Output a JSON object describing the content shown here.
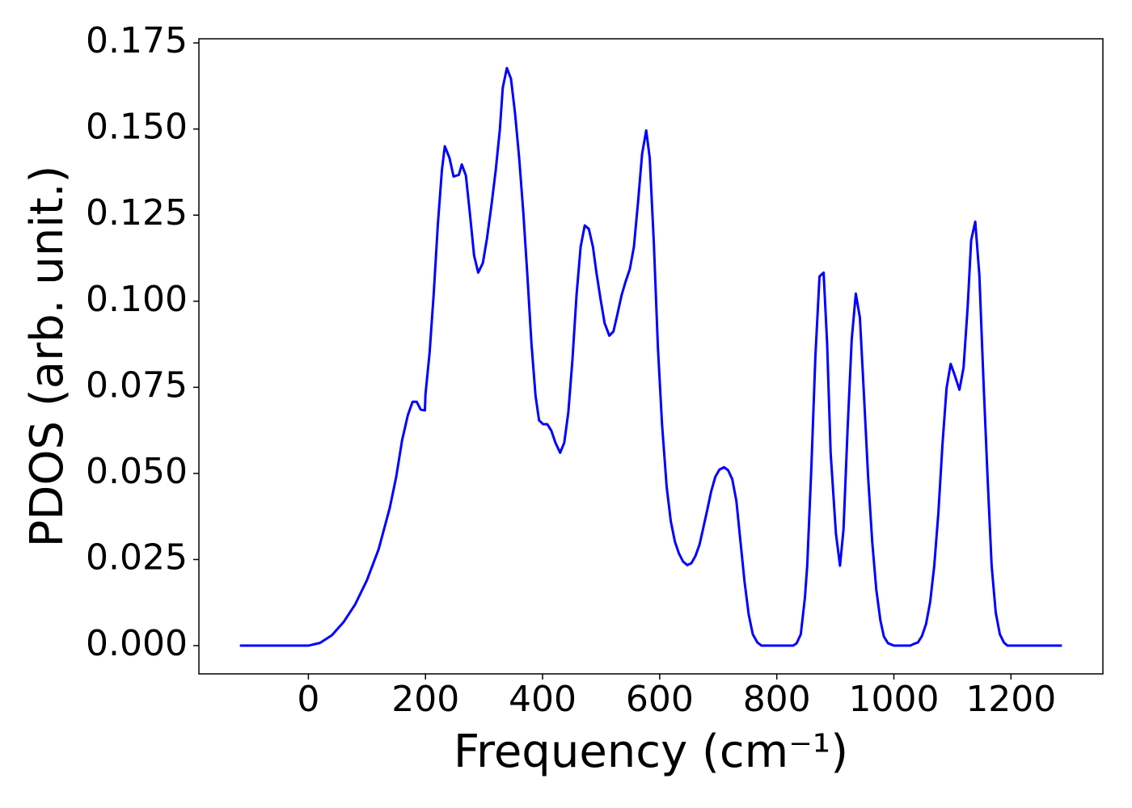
{
  "chart_data": {
    "type": "line",
    "xlabel": "Frequency (cm⁻¹)",
    "ylabel": "PDOS (arb. unit.)",
    "color": "#0000ff",
    "x": [
      -117,
      0,
      20,
      40,
      60,
      80,
      100,
      120,
      139,
      150,
      160,
      170,
      178,
      185,
      192,
      199,
      200,
      207,
      214,
      221,
      228,
      233,
      241,
      248,
      257,
      262,
      269,
      276,
      283,
      290,
      298,
      305,
      313,
      320,
      327,
      332,
      339,
      346,
      353,
      360,
      367,
      374,
      381,
      388,
      394,
      401,
      408,
      415,
      422,
      430,
      437,
      444,
      451,
      458,
      465,
      472,
      479,
      486,
      492,
      499,
      506,
      514,
      521,
      528,
      535,
      542,
      549,
      556,
      563,
      570,
      577,
      583,
      590,
      597,
      604,
      612,
      619,
      626,
      633,
      640,
      647,
      654,
      661,
      668,
      674,
      681,
      688,
      695,
      702,
      710,
      717,
      724,
      731,
      738,
      745,
      752,
      759,
      767,
      774,
      828,
      834,
      841,
      848,
      852,
      859,
      866,
      873,
      880,
      886,
      892,
      901,
      908,
      914,
      921,
      928,
      935,
      942,
      949,
      956,
      963,
      970,
      977,
      983,
      990,
      1000,
      1028,
      1034,
      1041,
      1048,
      1055,
      1062,
      1069,
      1076,
      1083,
      1090,
      1097,
      1103,
      1112,
      1119,
      1126,
      1132,
      1139,
      1146,
      1153,
      1160,
      1167,
      1174,
      1181,
      1188,
      1194,
      1287
    ],
    "values": [
      0,
      0,
      0.0008,
      0.003,
      0.0068,
      0.012,
      0.019,
      0.028,
      0.04,
      0.049,
      0.0596,
      0.067,
      0.0708,
      0.0708,
      0.0685,
      0.0683,
      0.073,
      0.085,
      0.102,
      0.122,
      0.138,
      0.145,
      0.1416,
      0.1362,
      0.1367,
      0.1397,
      0.1365,
      0.1252,
      0.1133,
      0.1083,
      0.1111,
      0.1182,
      0.1283,
      0.1381,
      0.1498,
      0.162,
      0.1677,
      0.1646,
      0.1545,
      0.1416,
      0.126,
      0.1076,
      0.0877,
      0.0725,
      0.0654,
      0.0643,
      0.0643,
      0.0624,
      0.0589,
      0.056,
      0.0589,
      0.0678,
      0.083,
      0.1018,
      0.1158,
      0.122,
      0.121,
      0.1158,
      0.1083,
      0.1006,
      0.0936,
      0.09,
      0.0912,
      0.0964,
      0.1018,
      0.1058,
      0.1093,
      0.1158,
      0.1287,
      0.1428,
      0.1496,
      0.1416,
      0.117,
      0.0865,
      0.0643,
      0.046,
      0.0361,
      0.0302,
      0.0267,
      0.0244,
      0.0234,
      0.0239,
      0.026,
      0.0293,
      0.0338,
      0.0392,
      0.0448,
      0.049,
      0.0511,
      0.0518,
      0.0509,
      0.0483,
      0.042,
      0.0302,
      0.0185,
      0.0091,
      0.0033,
      0.0009,
      0,
      0,
      0.0007,
      0.0033,
      0.0138,
      0.0232,
      0.0514,
      0.0842,
      0.1072,
      0.1083,
      0.0877,
      0.056,
      0.0326,
      0.0232,
      0.0338,
      0.0631,
      0.0889,
      0.1022,
      0.0952,
      0.0725,
      0.049,
      0.0302,
      0.0162,
      0.0073,
      0.0026,
      0.0007,
      0,
      0,
      0.0005,
      0.0009,
      0.0028,
      0.0063,
      0.0127,
      0.0232,
      0.0385,
      0.0584,
      0.0748,
      0.0818,
      0.079,
      0.0743,
      0.0807,
      0.0982,
      0.1177,
      0.1231,
      0.1076,
      0.0771,
      0.049,
      0.0232,
      0.0096,
      0.0033,
      0.0009,
      0,
      0
    ],
    "xlim": [
      -187,
      1357
    ],
    "ylim": [
      -0.0082,
      0.1762
    ],
    "xticks": [
      0,
      200,
      400,
      600,
      800,
      1000,
      1200
    ],
    "yticks": [
      {
        "value": 0,
        "label": "0.000"
      },
      {
        "value": 0.025,
        "label": "0.025"
      },
      {
        "value": 0.05,
        "label": "0.050"
      },
      {
        "value": 0.075,
        "label": "0.075"
      },
      {
        "value": 0.1,
        "label": "0.100"
      },
      {
        "value": 0.125,
        "label": "0.125"
      },
      {
        "value": 0.15,
        "label": "0.150"
      },
      {
        "value": 0.175,
        "label": "0.175"
      }
    ]
  }
}
